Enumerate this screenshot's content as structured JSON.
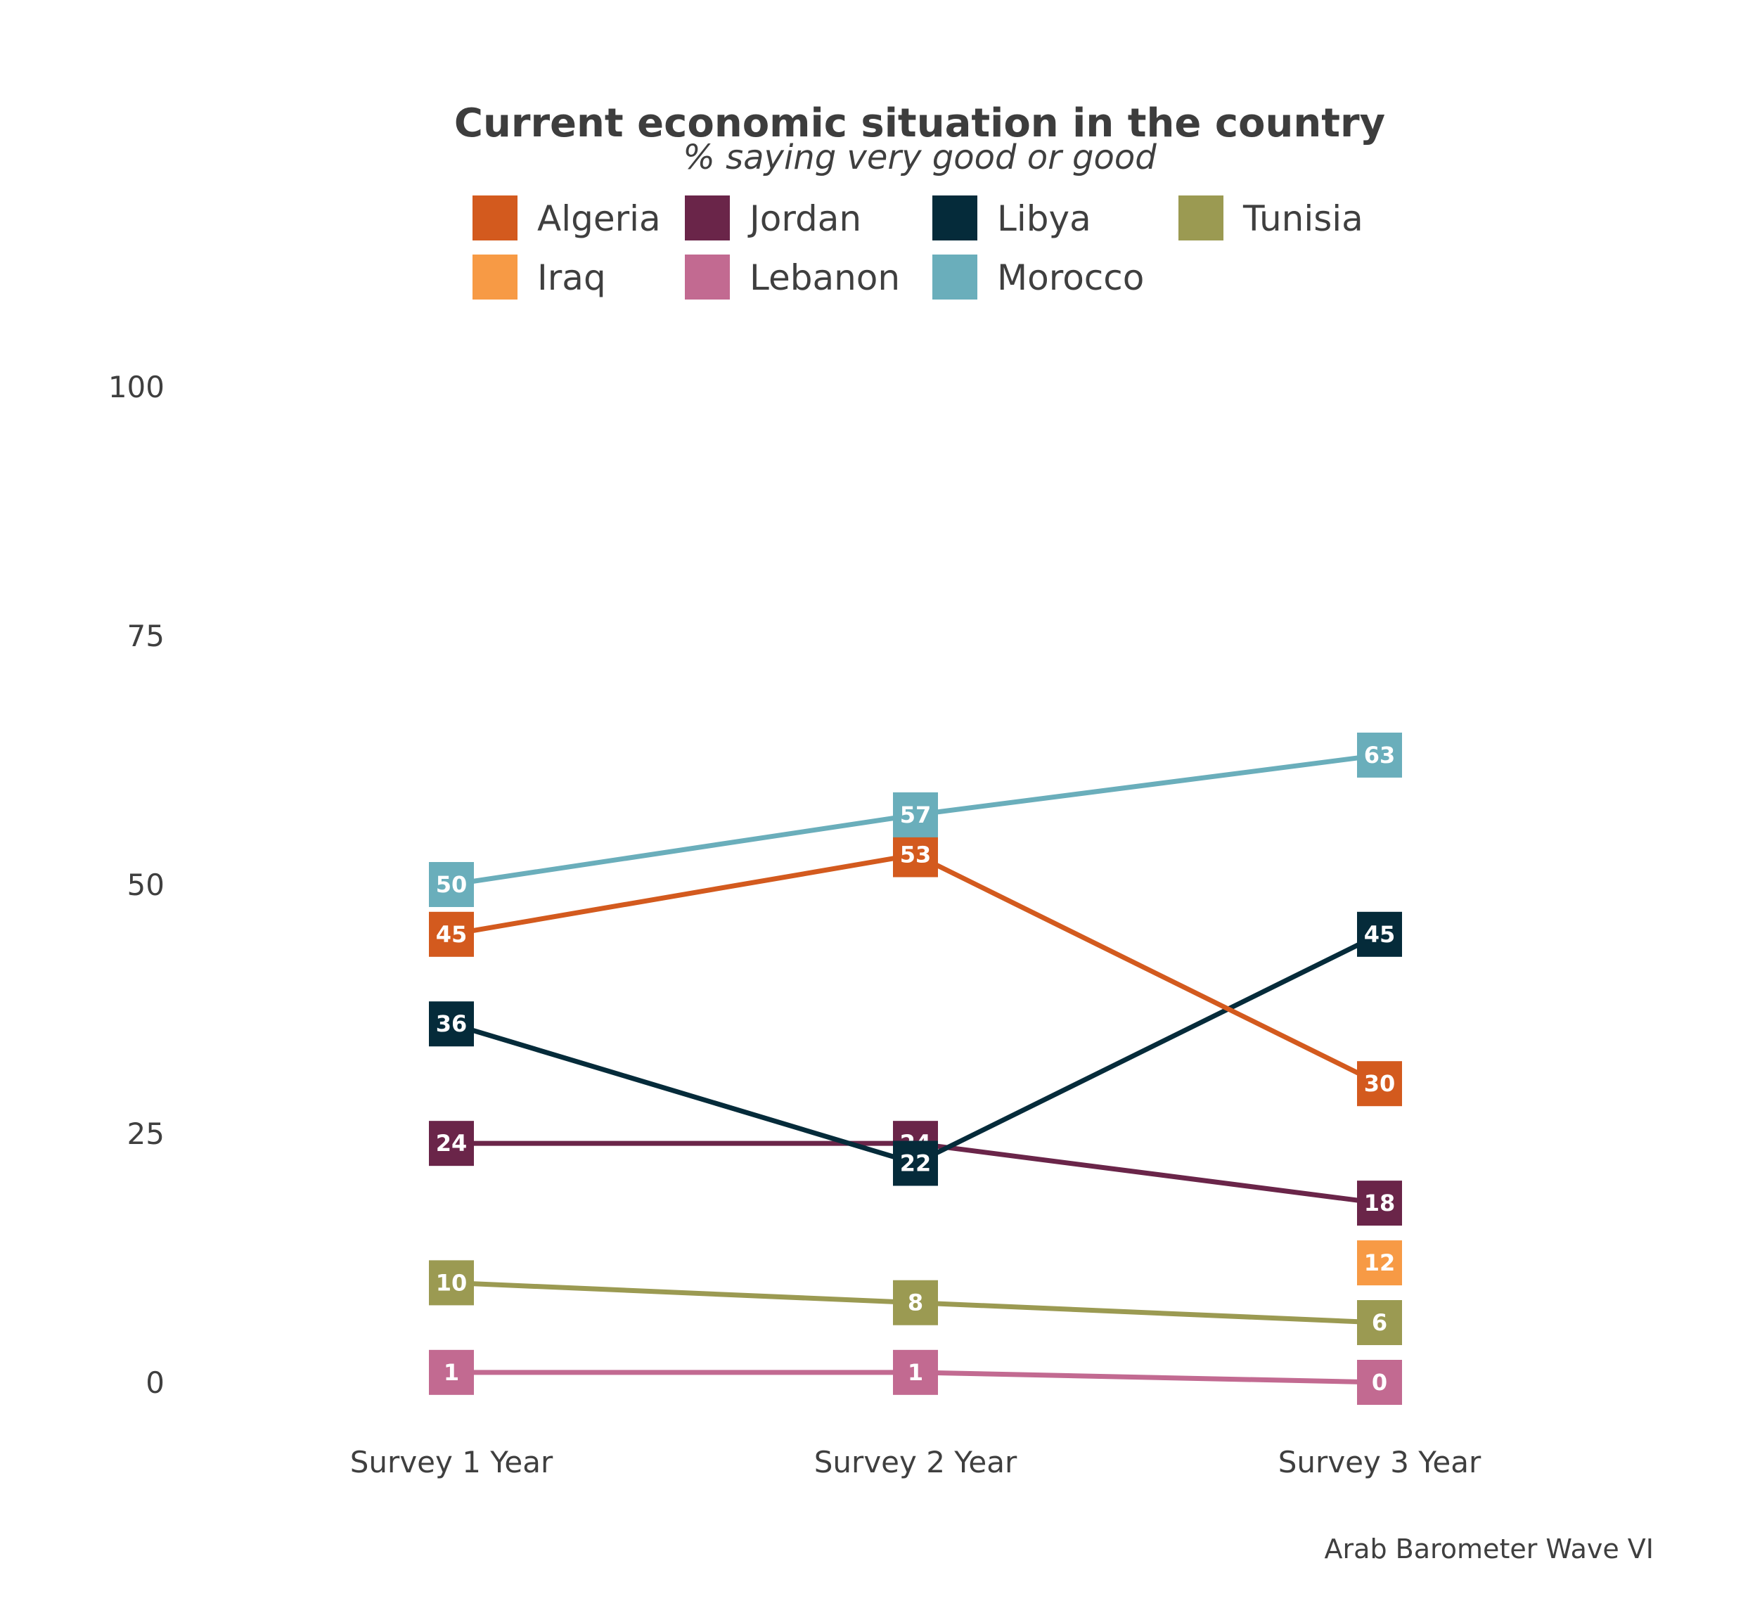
{
  "chart_data": {
    "type": "line",
    "title": "Current economic situation in the country",
    "subtitle": "% saying very good or good",
    "caption": "Arab Barometer Wave VI",
    "xlabel": "",
    "ylabel": "",
    "categories": [
      "Survey 1 Year",
      "Survey 2 Year",
      "Survey 3 Year"
    ],
    "ylim": [
      0,
      100
    ],
    "yticks": [
      "0",
      "25",
      "50",
      "75",
      "100"
    ],
    "ytick_values": [
      0,
      25,
      50,
      75,
      100
    ],
    "grid": false,
    "legend_position": "top",
    "series": [
      {
        "name": "Algeria",
        "color": "#d35a1e",
        "values": [
          45,
          53,
          30
        ]
      },
      {
        "name": "Iraq",
        "color": "#f79a45",
        "values": [
          null,
          null,
          12
        ]
      },
      {
        "name": "Jordan",
        "color": "#6a2549",
        "values": [
          24,
          24,
          18
        ]
      },
      {
        "name": "Lebanon",
        "color": "#c26a91",
        "values": [
          1,
          1,
          0
        ]
      },
      {
        "name": "Libya",
        "color": "#052b3a",
        "values": [
          36,
          22,
          45
        ]
      },
      {
        "name": "Morocco",
        "color": "#6aaebb",
        "values": [
          50,
          57,
          63
        ]
      },
      {
        "name": "Tunisia",
        "color": "#9b9a52",
        "values": [
          10,
          8,
          6
        ]
      }
    ]
  }
}
